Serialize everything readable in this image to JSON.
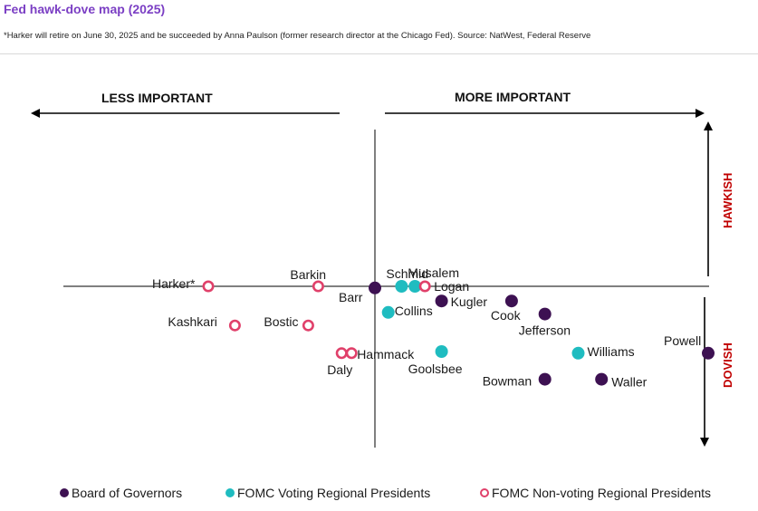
{
  "title": "Fed hawk-dove map (2025)",
  "subtitle": "*Harker will retire on June 30, 2025 and be succeeded by Anna Paulson (former research director at the Chicago Fed). Source: NatWest, Federal Reserve",
  "chart_data": {
    "type": "scatter",
    "x_axis_left_label": "LESS IMPORTANT",
    "x_axis_right_label": "MORE IMPORTANT",
    "y_axis_top_label": "HAWKISH",
    "y_axis_bottom_label": "DOVISH",
    "grid": false,
    "legend_position": "bottom",
    "colors": {
      "Board of Governors": "#3d1152",
      "FOMC Voting Regional Presidents": "#1fbcc0",
      "FOMC Non-voting Regional Presidents": "#e0406a"
    },
    "legend": [
      {
        "name": "Board of Governors",
        "marker": "filled-circle"
      },
      {
        "name": "FOMC Voting Regional Presidents",
        "marker": "filled-circle"
      },
      {
        "name": "FOMC Non-voting Regional Presidents",
        "marker": "hollow-circle"
      }
    ],
    "series": [
      {
        "name": "Board of Governors",
        "points": [
          {
            "label": "Barr",
            "x": 0.0,
            "y": -0.01
          },
          {
            "label": "Kugler",
            "x": 0.2,
            "y": -0.09
          },
          {
            "label": "Cook",
            "x": 0.41,
            "y": -0.09
          },
          {
            "label": "Jefferson",
            "x": 0.51,
            "y": -0.17
          },
          {
            "label": "Bowman",
            "x": 0.51,
            "y": -0.57
          },
          {
            "label": "Waller",
            "x": 0.68,
            "y": -0.57
          },
          {
            "label": "Powell",
            "x": 1.0,
            "y": -0.41
          }
        ]
      },
      {
        "name": "FOMC Voting Regional Presidents",
        "points": [
          {
            "label": "Schmid",
            "x": 0.08,
            "y": 0.0
          },
          {
            "label": "Musalem",
            "x": 0.12,
            "y": 0.0
          },
          {
            "label": "Collins",
            "x": 0.04,
            "y": -0.16
          },
          {
            "label": "Goolsbee",
            "x": 0.2,
            "y": -0.4
          },
          {
            "label": "Williams",
            "x": 0.61,
            "y": -0.41
          }
        ]
      },
      {
        "name": "FOMC Non-voting Regional Presidents",
        "points": [
          {
            "label": "Harker*",
            "x": -0.5,
            "y": 0.0
          },
          {
            "label": "Barkin",
            "x": -0.17,
            "y": 0.0
          },
          {
            "label": "Logan",
            "x": 0.15,
            "y": 0.0
          },
          {
            "label": "Kashkari",
            "x": -0.42,
            "y": -0.24
          },
          {
            "label": "Bostic",
            "x": -0.2,
            "y": -0.24
          },
          {
            "label": "Daly",
            "x": -0.1,
            "y": -0.41
          },
          {
            "label": "Hammack",
            "x": -0.07,
            "y": -0.41
          }
        ]
      }
    ],
    "xlim": [
      -1,
      1
    ],
    "ylim": [
      -1,
      1
    ]
  }
}
